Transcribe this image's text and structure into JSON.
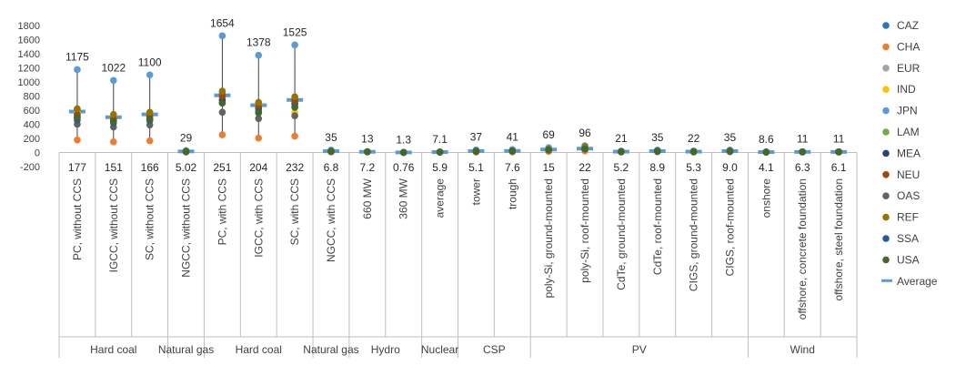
{
  "chart_data": {
    "type": "scatter",
    "ylim": [
      -200,
      1800
    ],
    "yticks": [
      -200,
      0,
      200,
      400,
      600,
      800,
      1000,
      1200,
      1400,
      1600,
      1800
    ],
    "grid": false,
    "legend_position": "right",
    "categories": [
      "PC, without CCS",
      "IGCC, without CCS",
      "SC, without CCS",
      "NGCC, without CCS",
      "PC, with CCS",
      "IGCC, with CCS",
      "SC, with CCS",
      "NGCC, with CCS",
      "660 MW",
      "360 MW",
      "average",
      "tower",
      "trough",
      "poly-Si, ground-mounted",
      "poly-Si, roof-mounted",
      "CdTe, ground-mounted",
      "CdTe, roof-mounted",
      "CIGS, ground-mounted",
      "CIGS, roof-mounted",
      "onshore",
      "offshore, concrete foundation",
      "offshore, steel foundation"
    ],
    "groups": [
      {
        "label": "Hard coal",
        "start": 0,
        "end": 2
      },
      {
        "label": "Natural gas",
        "start": 3,
        "end": 3
      },
      {
        "label": "Hard coal",
        "start": 4,
        "end": 6
      },
      {
        "label": "Natural gas",
        "start": 7,
        "end": 7
      },
      {
        "label": "Hydro",
        "start": 8,
        "end": 9
      },
      {
        "label": "Nuclear",
        "start": 10,
        "end": 10
      },
      {
        "label": "CSP",
        "start": 11,
        "end": 12
      },
      {
        "label": "PV",
        "start": 13,
        "end": 18
      },
      {
        "label": "Wind",
        "start": 19,
        "end": 21
      }
    ],
    "max_labels": [
      "1175",
      "1022",
      "1100",
      "29",
      "1654",
      "1378",
      "1525",
      "35",
      "13",
      "1.3",
      "7.1",
      "37",
      "41",
      "69",
      "96",
      "21",
      "35",
      "22",
      "35",
      "8.6",
      "11",
      "11"
    ],
    "min_labels": [
      "177",
      "151",
      "166",
      "5.02",
      "251",
      "204",
      "232",
      "6.8",
      "7.2",
      "0.76",
      "5.9",
      "5.1",
      "7.6",
      "15",
      "22",
      "5.2",
      "8.9",
      "5.3",
      "9.0",
      "4.1",
      "6.3",
      "6.1"
    ],
    "max": [
      1175,
      1022,
      1100,
      29,
      1654,
      1378,
      1525,
      35,
      13,
      1.3,
      7.1,
      37,
      41,
      69,
      96,
      21,
      35,
      22,
      35,
      8.6,
      11,
      11
    ],
    "min": [
      177,
      151,
      166,
      5.02,
      251,
      204,
      232,
      6.8,
      7.2,
      0.76,
      5.9,
      5.1,
      7.6,
      15,
      22,
      5.2,
      8.9,
      5.3,
      9.0,
      4.1,
      6.3,
      6.1
    ],
    "average": [
      580,
      500,
      540,
      15,
      810,
      670,
      745,
      18,
      10,
      1,
      6.5,
      20,
      22,
      42,
      55,
      12,
      20,
      12,
      20,
      6,
      8.5,
      8.5
    ],
    "regions": [
      {
        "name": "CAZ",
        "color": "#2e75b6",
        "values": [
          600,
          520,
          560,
          16,
          830,
          690,
          760,
          18,
          10,
          1,
          6.5,
          20,
          22,
          40,
          55,
          12,
          20,
          12,
          20,
          6,
          8.5,
          8.5
        ]
      },
      {
        "name": "CHA",
        "color": "#ed7d31",
        "values": [
          177,
          151,
          166,
          5.02,
          251,
          204,
          232,
          6.8,
          7.2,
          0.76,
          5.9,
          5.1,
          7.6,
          15,
          22,
          5.2,
          8.9,
          5.3,
          9.0,
          4.1,
          6.3,
          6.1
        ]
      },
      {
        "name": "EUR",
        "color": "#a5a5a5",
        "values": [
          520,
          470,
          500,
          14,
          760,
          630,
          700,
          17,
          10,
          1,
          6.5,
          19,
          21,
          38,
          50,
          11,
          19,
          11,
          19,
          6,
          8.5,
          8.5
        ]
      },
      {
        "name": "IND",
        "color": "#ffc000",
        "values": [
          560,
          500,
          540,
          15,
          800,
          660,
          560,
          18,
          10,
          1,
          6.5,
          20,
          22,
          40,
          55,
          12,
          20,
          12,
          20,
          6,
          8.5,
          8.5
        ]
      },
      {
        "name": "JPN",
        "color": "#5b9bd5",
        "values": [
          1175,
          1022,
          1100,
          29,
          1654,
          1378,
          1525,
          35,
          13,
          1.3,
          7.1,
          37,
          41,
          69,
          96,
          21,
          35,
          22,
          35,
          8.6,
          11,
          11
        ]
      },
      {
        "name": "LAM",
        "color": "#70ad47",
        "values": [
          540,
          480,
          520,
          15,
          790,
          650,
          730,
          17,
          10,
          1,
          6.5,
          20,
          22,
          40,
          55,
          12,
          20,
          12,
          20,
          6,
          8.5,
          8.5
        ]
      },
      {
        "name": "MEA",
        "color": "#264478",
        "values": [
          500,
          450,
          480,
          14,
          740,
          620,
          690,
          17,
          10,
          1,
          6.5,
          19,
          21,
          38,
          52,
          11,
          19,
          11,
          19,
          6,
          8.5,
          8.5
        ]
      },
      {
        "name": "NEU",
        "color": "#9e480e",
        "values": [
          540,
          480,
          520,
          15,
          800,
          650,
          730,
          17,
          10,
          1,
          6.5,
          20,
          22,
          40,
          55,
          12,
          20,
          12,
          20,
          6,
          8.5,
          8.5
        ]
      },
      {
        "name": "OAS",
        "color": "#636363",
        "values": [
          400,
          360,
          390,
          12,
          570,
          480,
          520,
          15,
          9,
          1,
          6.2,
          16,
          18,
          34,
          48,
          10,
          17,
          10,
          17,
          5.5,
          8,
          8
        ]
      },
      {
        "name": "REF",
        "color": "#997300",
        "values": [
          620,
          540,
          570,
          17,
          870,
          710,
          790,
          19,
          11,
          1.1,
          6.7,
          21,
          23,
          45,
          80,
          13,
          21,
          13,
          21,
          6.2,
          8.8,
          8.8
        ]
      },
      {
        "name": "SSA",
        "color": "#255e91",
        "values": [
          460,
          420,
          450,
          13,
          700,
          580,
          650,
          16,
          9.5,
          1,
          6.3,
          18,
          20,
          36,
          50,
          11,
          18,
          11,
          18,
          5.8,
          8.2,
          8.2
        ]
      },
      {
        "name": "USA",
        "color": "#43682b",
        "values": [
          490,
          440,
          470,
          14,
          700,
          560,
          640,
          16,
          9.5,
          1,
          6.3,
          18,
          20,
          36,
          50,
          11,
          18,
          11,
          18,
          5.8,
          8.2,
          8.2
        ]
      }
    ],
    "average_name": "Average",
    "average_color": "#5b9bd5",
    "range_line_color": "#404040"
  }
}
